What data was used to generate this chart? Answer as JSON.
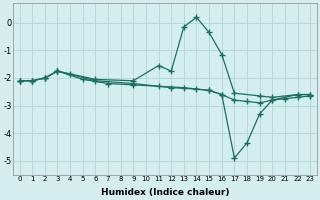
{
  "xlabel": "Humidex (Indice chaleur)",
  "background_color": "#d4eeee",
  "grid_color": "#b8d8d8",
  "line_color": "#1a7060",
  "xlim": [
    -0.5,
    23.5
  ],
  "ylim": [
    -5.5,
    0.7
  ],
  "yticks": [
    0,
    -1,
    -2,
    -3,
    -4,
    -5
  ],
  "xticks": [
    0,
    1,
    2,
    3,
    4,
    5,
    6,
    7,
    8,
    9,
    10,
    11,
    12,
    13,
    14,
    15,
    16,
    17,
    18,
    19,
    20,
    21,
    22,
    23
  ],
  "lines": [
    {
      "x": [
        0,
        1,
        2,
        3,
        4,
        6,
        9,
        11,
        12,
        13,
        14,
        15,
        16,
        17,
        19,
        20,
        22,
        23
      ],
      "y": [
        -2.1,
        -2.1,
        -2.0,
        -1.75,
        -1.85,
        -2.05,
        -2.1,
        -1.55,
        -1.75,
        -0.15,
        0.2,
        -0.35,
        -1.15,
        -2.55,
        -2.65,
        -2.7,
        -2.6,
        -2.6
      ]
    },
    {
      "x": [
        0,
        1,
        2,
        3,
        6,
        9,
        12,
        14,
        15,
        16,
        17,
        18,
        19,
        20,
        22,
        23
      ],
      "y": [
        -2.1,
        -2.1,
        -2.0,
        -1.75,
        -2.1,
        -2.2,
        -2.35,
        -2.4,
        -2.45,
        -2.6,
        -4.9,
        -4.35,
        -3.3,
        -2.8,
        -2.6,
        -2.6
      ]
    },
    {
      "x": [
        0,
        1,
        2,
        3,
        5,
        7,
        9,
        11,
        13,
        15,
        16,
        17,
        18,
        19,
        20,
        21,
        22,
        23
      ],
      "y": [
        -2.1,
        -2.1,
        -2.0,
        -1.75,
        -2.05,
        -2.2,
        -2.25,
        -2.3,
        -2.35,
        -2.45,
        -2.6,
        -2.8,
        -2.85,
        -2.9,
        -2.8,
        -2.75,
        -2.7,
        -2.65
      ]
    }
  ]
}
